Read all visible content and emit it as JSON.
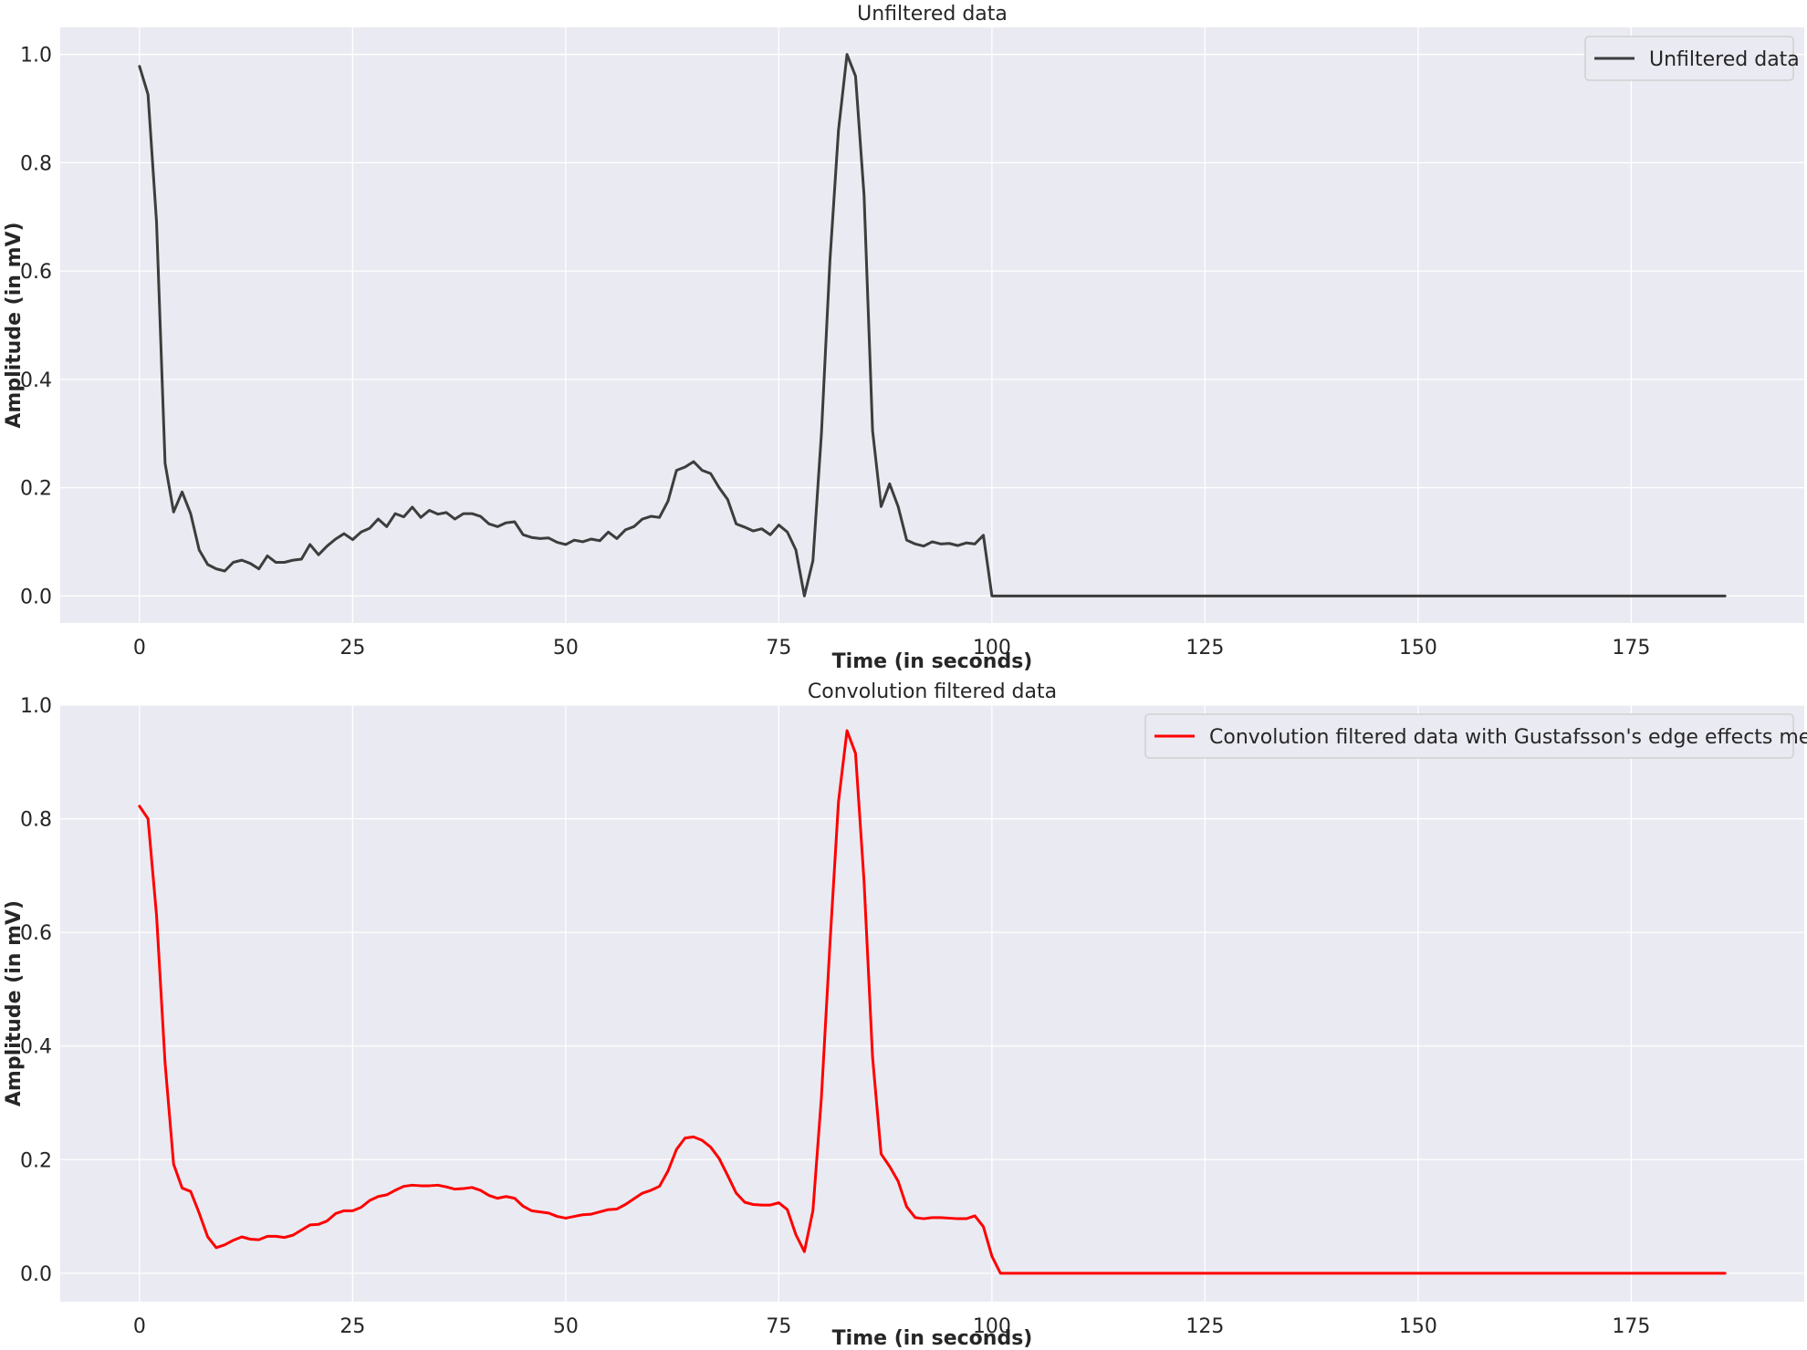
{
  "chart_data": [
    {
      "type": "line",
      "title": "Unfiltered data",
      "xlabel": "Time (in seconds)",
      "ylabel": "Amplitude (in mV)",
      "xlim": [
        -9.3,
        195.3
      ],
      "ylim": [
        -0.05,
        1.05
      ],
      "xticks": [
        0,
        25,
        50,
        75,
        100,
        125,
        150,
        175
      ],
      "yticks": [
        0.0,
        0.2,
        0.4,
        0.6,
        0.8,
        1.0
      ],
      "grid": true,
      "legend_position": "top-right",
      "series": [
        {
          "name": "Unfiltered data",
          "color": "#3d3d3d",
          "x": [
            0,
            1,
            2,
            3,
            4,
            5,
            6,
            7,
            8,
            9,
            10,
            11,
            12,
            13,
            14,
            15,
            16,
            17,
            18,
            19,
            20,
            21,
            22,
            23,
            24,
            25,
            26,
            27,
            28,
            29,
            30,
            31,
            32,
            33,
            34,
            35,
            36,
            37,
            38,
            39,
            40,
            41,
            42,
            43,
            44,
            45,
            46,
            47,
            48,
            49,
            50,
            51,
            52,
            53,
            54,
            55,
            56,
            57,
            58,
            59,
            60,
            61,
            62,
            63,
            64,
            65,
            66,
            67,
            68,
            69,
            70,
            71,
            72,
            73,
            74,
            75,
            76,
            77,
            78,
            79,
            80,
            81,
            82,
            83,
            84,
            85,
            86,
            87,
            88,
            89,
            90,
            91,
            92,
            93,
            94,
            95,
            96,
            97,
            98,
            99,
            100,
            101,
            186
          ],
          "y": [
            0.978,
            0.926,
            0.69,
            0.245,
            0.155,
            0.192,
            0.152,
            0.085,
            0.058,
            0.05,
            0.046,
            0.062,
            0.066,
            0.06,
            0.05,
            0.074,
            0.062,
            0.062,
            0.066,
            0.068,
            0.095,
            0.076,
            0.092,
            0.105,
            0.115,
            0.104,
            0.118,
            0.125,
            0.142,
            0.128,
            0.152,
            0.146,
            0.164,
            0.145,
            0.158,
            0.151,
            0.154,
            0.142,
            0.152,
            0.152,
            0.147,
            0.133,
            0.128,
            0.135,
            0.137,
            0.113,
            0.108,
            0.106,
            0.107,
            0.099,
            0.095,
            0.103,
            0.1,
            0.105,
            0.102,
            0.118,
            0.106,
            0.122,
            0.128,
            0.142,
            0.147,
            0.145,
            0.175,
            0.232,
            0.238,
            0.248,
            0.232,
            0.226,
            0.2,
            0.178,
            0.133,
            0.127,
            0.12,
            0.124,
            0.113,
            0.131,
            0.118,
            0.085,
            0.0,
            0.065,
            0.3,
            0.62,
            0.86,
            1.0,
            0.96,
            0.74,
            0.305,
            0.165,
            0.207,
            0.165,
            0.103,
            0.096,
            0.092,
            0.1,
            0.096,
            0.097,
            0.093,
            0.098,
            0.096,
            0.112,
            0.0,
            0.0,
            0.0
          ]
        }
      ]
    },
    {
      "type": "line",
      "title": "Convolution filtered data",
      "xlabel": "Time (in seconds)",
      "ylabel": "Amplitude (in mV)",
      "xlim": [
        -9.3,
        195.3
      ],
      "ylim": [
        -0.05,
        1.0
      ],
      "xticks": [
        0,
        25,
        50,
        75,
        100,
        125,
        150,
        175
      ],
      "yticks": [
        0.0,
        0.2,
        0.4,
        0.6,
        0.8,
        1.0
      ],
      "grid": true,
      "legend_position": "top-right",
      "series": [
        {
          "name": "Convolution filtered data with Gustafsson's edge effects method",
          "color": "#ff0000",
          "x": [
            0,
            1,
            2,
            3,
            4,
            5,
            6,
            7,
            8,
            9,
            10,
            11,
            12,
            13,
            14,
            15,
            16,
            17,
            18,
            19,
            20,
            21,
            22,
            23,
            24,
            25,
            26,
            27,
            28,
            29,
            30,
            31,
            32,
            33,
            34,
            35,
            36,
            37,
            38,
            39,
            40,
            41,
            42,
            43,
            44,
            45,
            46,
            47,
            48,
            49,
            50,
            51,
            52,
            53,
            54,
            55,
            56,
            57,
            58,
            59,
            60,
            61,
            62,
            63,
            64,
            65,
            66,
            67,
            68,
            69,
            70,
            71,
            72,
            73,
            74,
            75,
            76,
            77,
            78,
            79,
            80,
            81,
            82,
            83,
            84,
            85,
            86,
            87,
            88,
            89,
            90,
            91,
            92,
            93,
            94,
            95,
            96,
            97,
            98,
            99,
            100,
            101,
            186
          ],
          "y": [
            0.822,
            0.8,
            0.63,
            0.37,
            0.192,
            0.15,
            0.144,
            0.106,
            0.064,
            0.045,
            0.05,
            0.058,
            0.064,
            0.06,
            0.059,
            0.065,
            0.065,
            0.063,
            0.067,
            0.076,
            0.085,
            0.086,
            0.092,
            0.105,
            0.11,
            0.11,
            0.116,
            0.128,
            0.135,
            0.138,
            0.146,
            0.153,
            0.155,
            0.154,
            0.154,
            0.155,
            0.152,
            0.148,
            0.149,
            0.151,
            0.146,
            0.137,
            0.132,
            0.135,
            0.132,
            0.118,
            0.11,
            0.108,
            0.106,
            0.1,
            0.097,
            0.1,
            0.103,
            0.104,
            0.108,
            0.112,
            0.113,
            0.121,
            0.131,
            0.141,
            0.146,
            0.153,
            0.18,
            0.218,
            0.238,
            0.24,
            0.234,
            0.222,
            0.202,
            0.172,
            0.141,
            0.125,
            0.121,
            0.12,
            0.12,
            0.124,
            0.112,
            0.068,
            0.038,
            0.11,
            0.31,
            0.58,
            0.83,
            0.955,
            0.915,
            0.69,
            0.38,
            0.21,
            0.188,
            0.162,
            0.117,
            0.098,
            0.096,
            0.098,
            0.098,
            0.097,
            0.096,
            0.096,
            0.101,
            0.082,
            0.03,
            0.0,
            0.0
          ]
        }
      ]
    }
  ]
}
